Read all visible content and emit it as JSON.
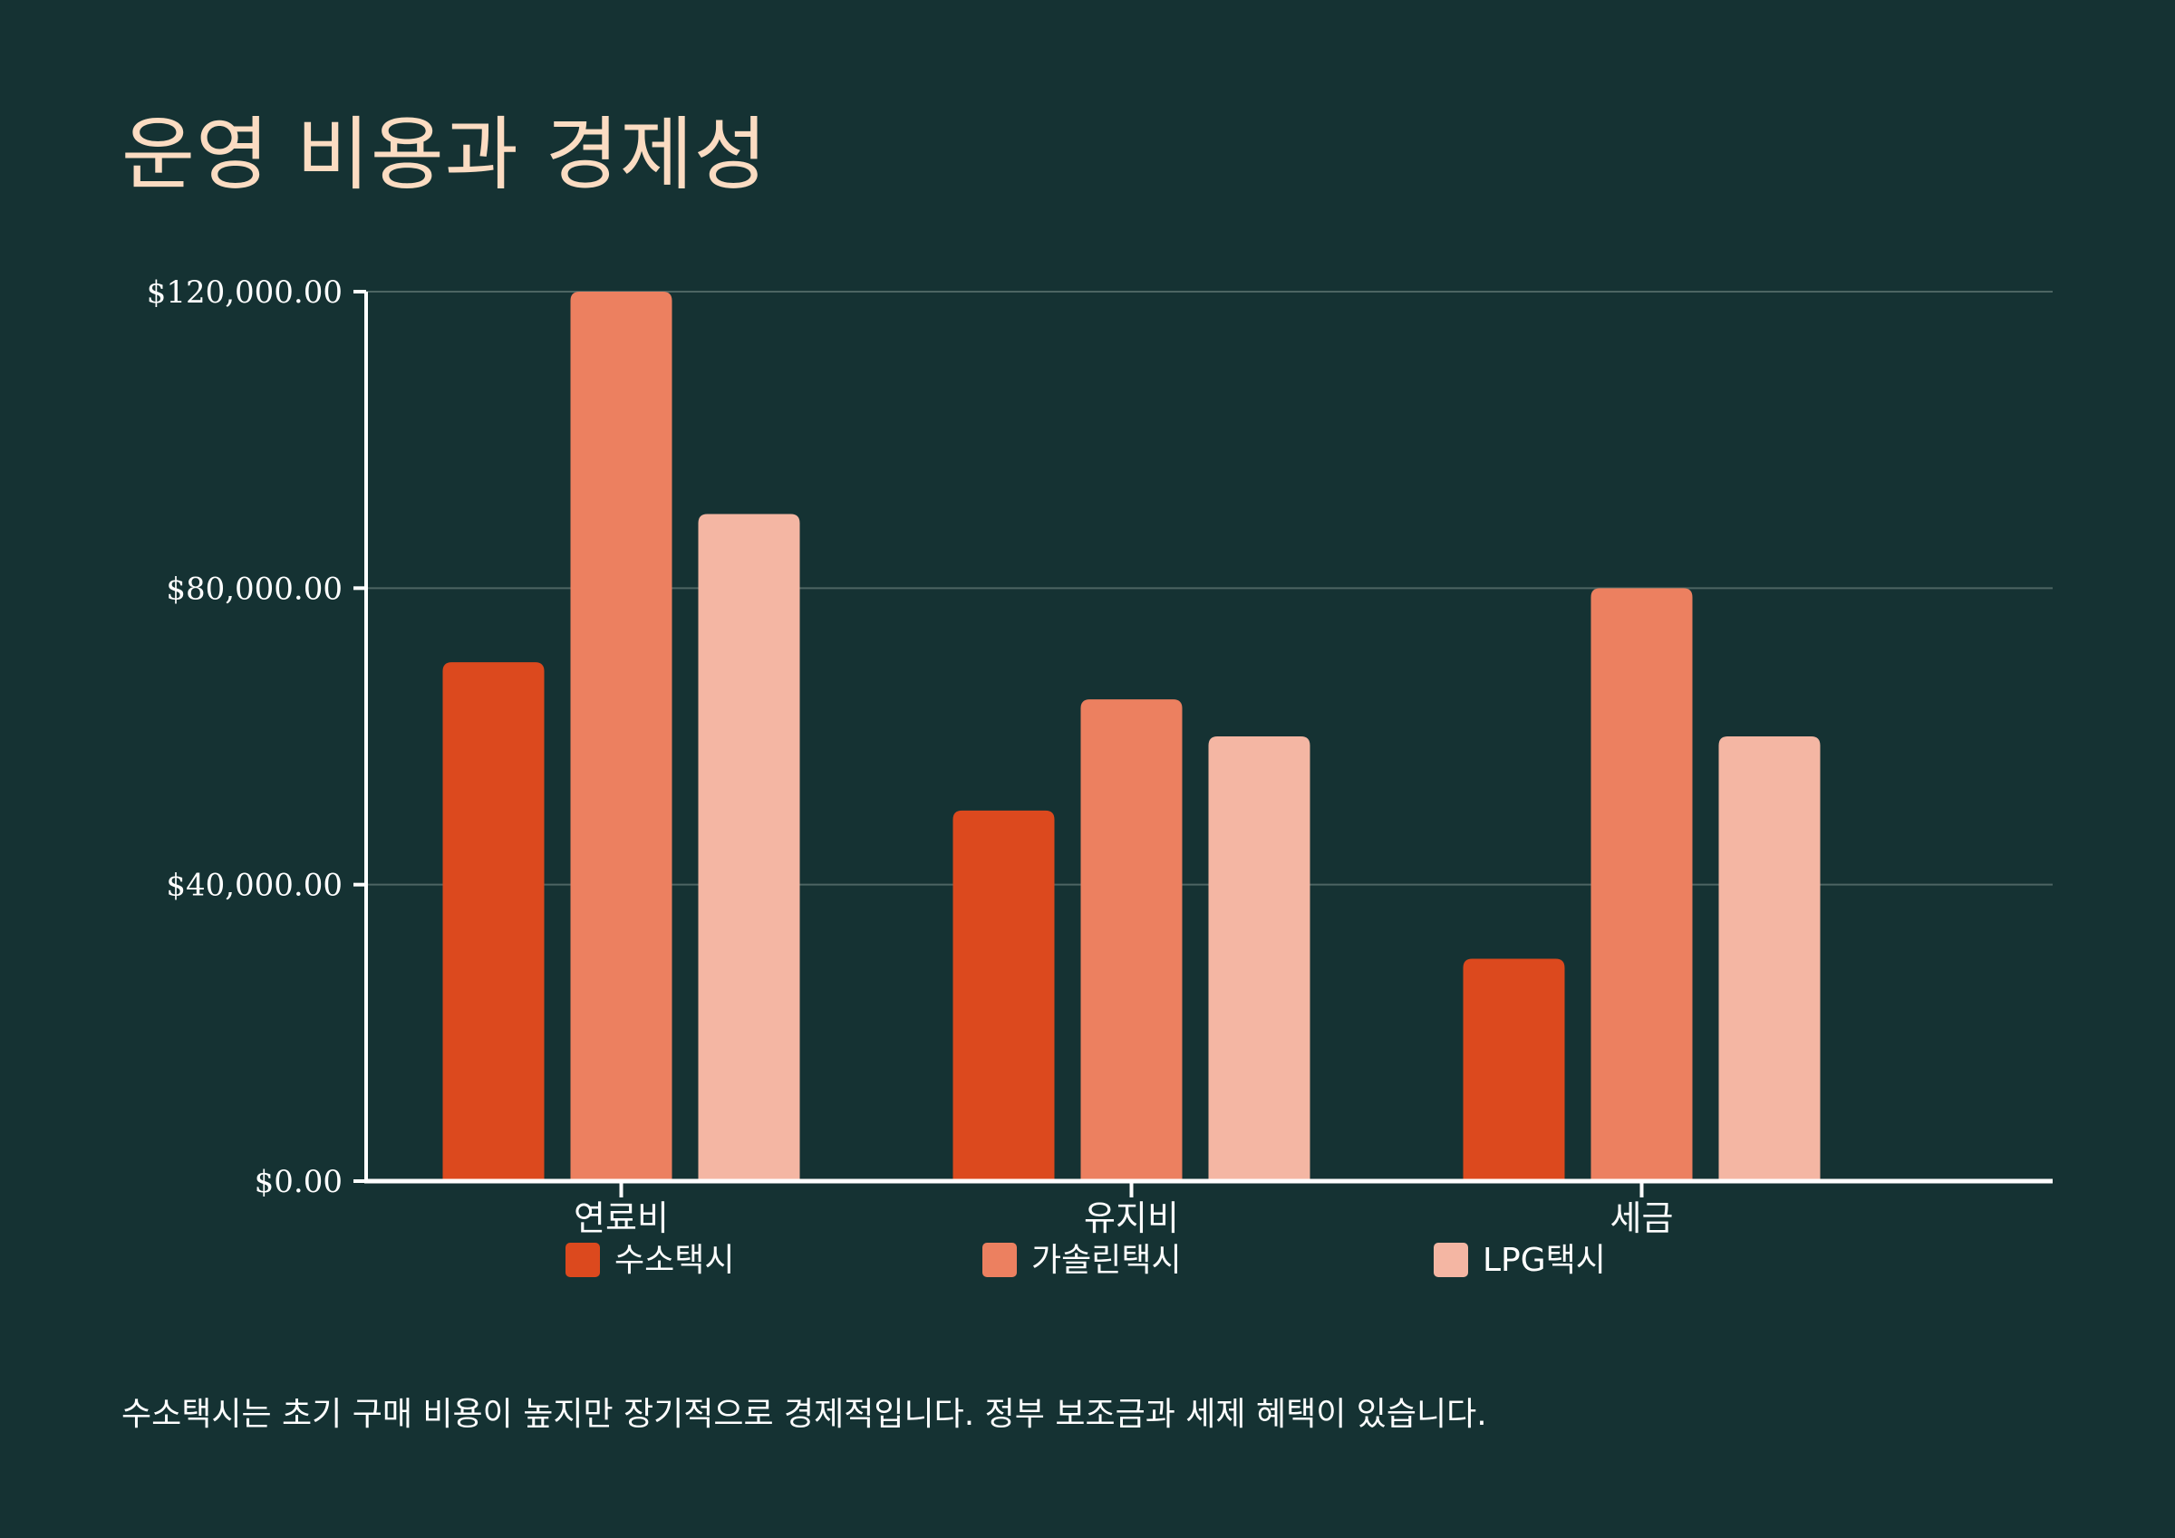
{
  "page": {
    "title": "운영 비용과 경제성",
    "caption": "수소택시는 초기 구매 비용이 높지만 장기적으로 경제적입니다. 정부 보조금과 세제 혜택이 있습니다."
  },
  "colors": {
    "background": "#153233",
    "title": "#fbdcc2",
    "axis": "#ffffff",
    "grid": "#4d6563",
    "text": "#ffffff"
  },
  "chart_data": {
    "type": "bar",
    "title": "운영 비용과 경제성",
    "xlabel": "",
    "ylabel": "",
    "categories": [
      "연료비",
      "유지비",
      "세금"
    ],
    "series": [
      {
        "name": "수소택시",
        "color": "#dc491e",
        "values": [
          70000,
          50000,
          30000
        ]
      },
      {
        "name": "가솔린택시",
        "color": "#ec8060",
        "values": [
          120000,
          65000,
          80000
        ]
      },
      {
        "name": "LPG택시",
        "color": "#f4b6a3",
        "values": [
          90000,
          60000,
          60000
        ]
      }
    ],
    "ylim": [
      0,
      120000
    ],
    "yticks": [
      0,
      40000,
      80000,
      120000
    ],
    "ytick_labels": [
      "$0.00",
      "$40,000.00",
      "$80,000.00",
      "$120,000.00"
    ],
    "grid": true,
    "legend_position": "bottom"
  }
}
